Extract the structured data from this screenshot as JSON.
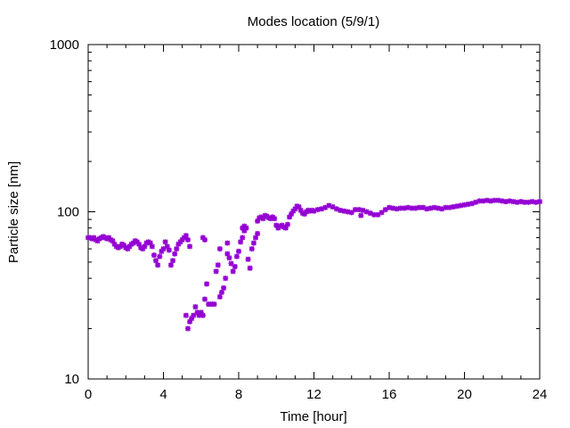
{
  "chart_data": {
    "type": "scatter",
    "title": "Modes location (5/9/1)",
    "xlabel": "Time [hour]",
    "ylabel": "Particle size [nm]",
    "xlim": [
      0,
      24
    ],
    "ylim": [
      10,
      1000
    ],
    "yscale": "log",
    "xticks": [
      0,
      4,
      8,
      12,
      16,
      20,
      24
    ],
    "xtick_labels": [
      "0",
      "4",
      "8",
      "12",
      "16",
      "20",
      "24"
    ],
    "yticks": [
      10,
      100,
      1000
    ],
    "ytick_labels": [
      "10",
      "100",
      "1000"
    ],
    "grid": false,
    "legend": "none",
    "marker_color": "#9400d3",
    "series": [
      {
        "points": [
          [
            0.0,
            70
          ],
          [
            0.1,
            70
          ],
          [
            0.2,
            69
          ],
          [
            0.3,
            70
          ],
          [
            0.4,
            68
          ],
          [
            0.5,
            67
          ],
          [
            0.6,
            69
          ],
          [
            0.7,
            70
          ],
          [
            0.8,
            71
          ],
          [
            0.9,
            70
          ],
          [
            1.0,
            69
          ],
          [
            1.1,
            70
          ],
          [
            1.2,
            68
          ],
          [
            1.3,
            67
          ],
          [
            1.4,
            64
          ],
          [
            1.5,
            62
          ],
          [
            1.6,
            61
          ],
          [
            1.7,
            62
          ],
          [
            1.8,
            64
          ],
          [
            1.9,
            63
          ],
          [
            2.0,
            61
          ],
          [
            2.1,
            60
          ],
          [
            2.2,
            62
          ],
          [
            2.3,
            64
          ],
          [
            2.4,
            65
          ],
          [
            2.5,
            67
          ],
          [
            2.6,
            66
          ],
          [
            2.7,
            64
          ],
          [
            2.8,
            61
          ],
          [
            2.9,
            60
          ],
          [
            3.0,
            62
          ],
          [
            3.1,
            65
          ],
          [
            3.2,
            66
          ],
          [
            3.3,
            65
          ],
          [
            3.4,
            62
          ],
          [
            3.5,
            55
          ],
          [
            3.6,
            51
          ],
          [
            3.7,
            48
          ],
          [
            3.8,
            54
          ],
          [
            3.9,
            58
          ],
          [
            4.0,
            60
          ],
          [
            4.1,
            66
          ],
          [
            4.2,
            62
          ],
          [
            4.3,
            59
          ],
          [
            4.4,
            48
          ],
          [
            4.5,
            51
          ],
          [
            4.6,
            56
          ],
          [
            4.7,
            60
          ],
          [
            4.8,
            64
          ],
          [
            4.9,
            66
          ],
          [
            5.0,
            68
          ],
          [
            5.1,
            70
          ],
          [
            5.2,
            72
          ],
          [
            5.3,
            68
          ],
          [
            5.4,
            62
          ],
          [
            5.2,
            24
          ],
          [
            5.3,
            20
          ],
          [
            5.4,
            22
          ],
          [
            5.5,
            23
          ],
          [
            5.6,
            24
          ],
          [
            5.7,
            27
          ],
          [
            5.8,
            25
          ],
          [
            5.9,
            24
          ],
          [
            6.0,
            25
          ],
          [
            6.1,
            24
          ],
          [
            6.2,
            30
          ],
          [
            6.3,
            37
          ],
          [
            6.4,
            28
          ],
          [
            6.5,
            28
          ],
          [
            6.6,
            28
          ],
          [
            6.7,
            28
          ],
          [
            6.8,
            44
          ],
          [
            6.9,
            48
          ],
          [
            7.0,
            31
          ],
          [
            7.1,
            33
          ],
          [
            7.2,
            35
          ],
          [
            7.3,
            40
          ],
          [
            7.4,
            56
          ],
          [
            7.5,
            53
          ],
          [
            7.6,
            49
          ],
          [
            7.7,
            44
          ],
          [
            7.8,
            47
          ],
          [
            7.9,
            54
          ],
          [
            8.0,
            58
          ],
          [
            8.1,
            66
          ],
          [
            8.2,
            70
          ],
          [
            8.3,
            77
          ],
          [
            8.4,
            80
          ],
          [
            8.5,
            52
          ],
          [
            8.6,
            46
          ],
          [
            8.7,
            60
          ],
          [
            8.8,
            65
          ],
          [
            8.9,
            70
          ],
          [
            9.0,
            74
          ],
          [
            6.1,
            70
          ],
          [
            6.2,
            68
          ],
          [
            7.4,
            65
          ],
          [
            7.0,
            60
          ],
          [
            8.2,
            80
          ],
          [
            8.3,
            82
          ],
          [
            9.0,
            88
          ],
          [
            9.1,
            92
          ],
          [
            9.2,
            93
          ],
          [
            9.3,
            91
          ],
          [
            9.4,
            95
          ],
          [
            9.5,
            94
          ],
          [
            9.6,
            92
          ],
          [
            9.7,
            91
          ],
          [
            9.8,
            93
          ],
          [
            9.9,
            91
          ],
          [
            10.0,
            83
          ],
          [
            10.1,
            80
          ],
          [
            10.2,
            82
          ],
          [
            10.3,
            83
          ],
          [
            10.4,
            81
          ],
          [
            10.5,
            80
          ],
          [
            10.6,
            84
          ],
          [
            10.7,
            93
          ],
          [
            10.8,
            97
          ],
          [
            10.9,
            101
          ],
          [
            11.0,
            104
          ],
          [
            11.1,
            108
          ],
          [
            11.2,
            107
          ],
          [
            11.3,
            102
          ],
          [
            11.4,
            98
          ],
          [
            11.5,
            97
          ],
          [
            11.6,
            100
          ],
          [
            11.7,
            102
          ],
          [
            11.8,
            101
          ],
          [
            11.9,
            102
          ],
          [
            12.0,
            101
          ],
          [
            12.2,
            103
          ],
          [
            12.4,
            104
          ],
          [
            12.6,
            106
          ],
          [
            12.8,
            109
          ],
          [
            13.0,
            107
          ],
          [
            13.2,
            104
          ],
          [
            13.4,
            102
          ],
          [
            13.6,
            101
          ],
          [
            13.8,
            100
          ],
          [
            14.0,
            99
          ],
          [
            14.2,
            103
          ],
          [
            14.4,
            103
          ],
          [
            14.5,
            95
          ],
          [
            14.6,
            102
          ],
          [
            14.8,
            100
          ],
          [
            15.0,
            98
          ],
          [
            15.2,
            96
          ],
          [
            15.4,
            96
          ],
          [
            15.6,
            99
          ],
          [
            15.8,
            103
          ],
          [
            16.0,
            106
          ],
          [
            16.2,
            105
          ],
          [
            16.4,
            104
          ],
          [
            16.6,
            105
          ],
          [
            16.8,
            105
          ],
          [
            17.0,
            106
          ],
          [
            17.2,
            105
          ],
          [
            17.4,
            105
          ],
          [
            17.6,
            106
          ],
          [
            17.8,
            106
          ],
          [
            18.0,
            104
          ],
          [
            18.2,
            105
          ],
          [
            18.4,
            106
          ],
          [
            18.6,
            105
          ],
          [
            18.8,
            104
          ],
          [
            19.0,
            106
          ],
          [
            19.2,
            106
          ],
          [
            19.4,
            107
          ],
          [
            19.6,
            108
          ],
          [
            19.8,
            109
          ],
          [
            20.0,
            110
          ],
          [
            20.2,
            111
          ],
          [
            20.4,
            112
          ],
          [
            20.6,
            114
          ],
          [
            20.8,
            116
          ],
          [
            21.0,
            116
          ],
          [
            21.2,
            117
          ],
          [
            21.4,
            116
          ],
          [
            21.6,
            117
          ],
          [
            21.8,
            117
          ],
          [
            22.0,
            116
          ],
          [
            22.2,
            115
          ],
          [
            22.4,
            116
          ],
          [
            22.6,
            115
          ],
          [
            22.8,
            114
          ],
          [
            23.0,
            115
          ],
          [
            23.2,
            114
          ],
          [
            23.4,
            114
          ],
          [
            23.6,
            115
          ],
          [
            23.8,
            114
          ],
          [
            24.0,
            115
          ]
        ]
      }
    ]
  }
}
